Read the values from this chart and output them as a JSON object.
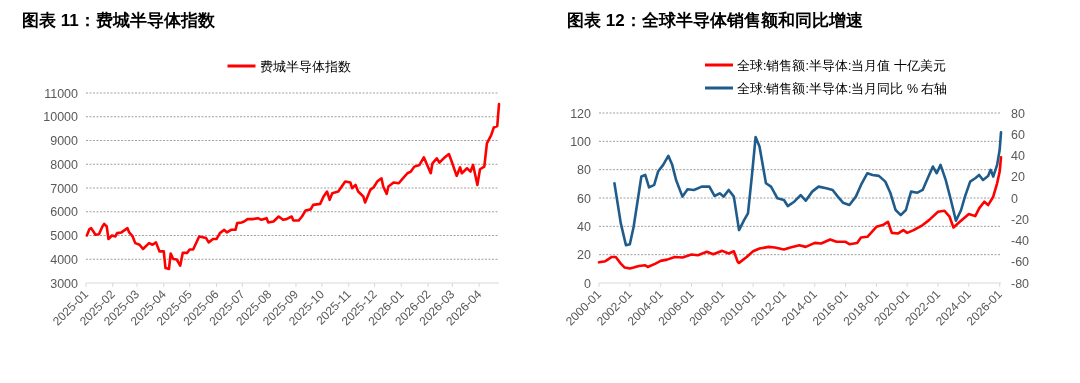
{
  "chart_data": [
    {
      "type": "line",
      "title": "图表 11：费城半导体指数",
      "legend": "top",
      "grid": "y",
      "line_style": "solid",
      "xlim": [
        "2025-01-01",
        "2026-04-24"
      ],
      "xticks": [
        "2025-01",
        "2025-02",
        "2025-03",
        "2025-04",
        "2025-05",
        "2025-06",
        "2025-07",
        "2025-08",
        "2025-09",
        "2025-10",
        "2025-11",
        "2025-12",
        "2026-01",
        "2026-02",
        "2026-03",
        "2026-04"
      ],
      "ylim": [
        3000,
        11000
      ],
      "yticks": [
        3000,
        4000,
        5000,
        6000,
        7000,
        8000,
        9000,
        10000,
        11000
      ],
      "x": [
        "2025-01-02",
        "2025-01-05",
        "2025-01-07",
        "2025-01-12",
        "2025-01-16",
        "2025-01-20",
        "2025-01-22",
        "2025-01-25",
        "2025-01-27",
        "2025-01-31",
        "2025-02-04",
        "2025-02-06",
        "2025-02-11",
        "2025-02-18",
        "2025-02-20",
        "2025-02-24",
        "2025-02-27",
        "2025-03-04",
        "2025-03-08",
        "2025-03-15",
        "2025-03-19",
        "2025-03-23",
        "2025-03-27",
        "2025-04-01",
        "2025-04-03",
        "2025-04-07",
        "2025-04-09",
        "2025-04-12",
        "2025-04-16",
        "2025-04-20",
        "2025-04-23",
        "2025-04-28",
        "2025-05-01",
        "2025-05-05",
        "2025-05-12",
        "2025-05-20",
        "2025-05-23",
        "2025-05-28",
        "2025-06-01",
        "2025-06-05",
        "2025-06-10",
        "2025-06-13",
        "2025-06-18",
        "2025-06-23",
        "2025-06-25",
        "2025-06-30",
        "2025-07-03",
        "2025-07-07",
        "2025-07-13",
        "2025-07-19",
        "2025-07-23",
        "2025-07-29",
        "2025-07-31",
        "2025-08-06",
        "2025-08-12",
        "2025-08-17",
        "2025-08-21",
        "2025-08-27",
        "2025-08-29",
        "2025-09-04",
        "2025-09-08",
        "2025-09-12",
        "2025-09-18",
        "2025-09-21",
        "2025-09-29",
        "2025-10-03",
        "2025-10-07",
        "2025-10-10",
        "2025-10-13",
        "2025-10-20",
        "2025-10-24",
        "2025-10-28",
        "2025-11-03",
        "2025-11-05",
        "2025-11-09",
        "2025-11-12",
        "2025-11-18",
        "2025-11-20",
        "2025-11-26",
        "2025-11-30",
        "2025-12-04",
        "2025-12-09",
        "2025-12-11",
        "2025-12-15",
        "2025-12-17",
        "2025-12-23",
        "2025-12-29",
        "2026-01-02",
        "2026-01-08",
        "2026-01-12",
        "2026-01-16",
        "2026-01-22",
        "2026-01-27",
        "2026-01-30",
        "2026-02-04",
        "2026-02-06",
        "2026-02-11",
        "2026-02-14",
        "2026-02-19",
        "2026-02-25",
        "2026-03-01",
        "2026-03-06",
        "2026-03-10",
        "2026-03-12",
        "2026-03-18",
        "2026-03-22",
        "2026-03-25",
        "2026-03-30",
        "2026-04-02",
        "2026-04-07",
        "2026-04-10",
        "2026-04-15",
        "2026-04-18",
        "2026-04-22",
        "2026-04-24"
      ],
      "series": [
        {
          "name": "费城半导体指数",
          "color": "#ff0000",
          "values": [
            5000,
            5270,
            5310,
            5030,
            5050,
            5380,
            5490,
            5380,
            4850,
            5000,
            4960,
            5100,
            5130,
            5310,
            5130,
            4960,
            4680,
            4610,
            4430,
            4680,
            4610,
            4710,
            4330,
            4330,
            3630,
            3590,
            4240,
            4010,
            3990,
            3730,
            4270,
            4270,
            4410,
            4410,
            4960,
            4890,
            4710,
            4850,
            4850,
            5100,
            5240,
            5130,
            5240,
            5240,
            5520,
            5550,
            5590,
            5690,
            5690,
            5730,
            5660,
            5730,
            5550,
            5590,
            5800,
            5660,
            5690,
            5800,
            5630,
            5630,
            5800,
            6050,
            6100,
            6290,
            6330,
            6640,
            6850,
            6500,
            6780,
            6850,
            7060,
            7270,
            7230,
            6990,
            7130,
            6850,
            6640,
            6390,
            6920,
            7030,
            7270,
            7410,
            7060,
            6750,
            7060,
            7230,
            7200,
            7370,
            7620,
            7690,
            7900,
            7970,
            8290,
            8040,
            7620,
            8040,
            8250,
            8070,
            8250,
            8430,
            8040,
            7510,
            7870,
            7620,
            7830,
            7690,
            7970,
            7130,
            7790,
            7900,
            8880,
            9230,
            9550,
            9610,
            10530
          ]
        }
      ]
    },
    {
      "type": "line",
      "title": "图表 12：全球半导体销售额和同比增速",
      "legend": "top",
      "grid": "y",
      "line_style": "solid",
      "xlim": [
        "2000-01",
        "2026-02"
      ],
      "xticks": [
        "2000-01",
        "2002-01",
        "2004-01",
        "2006-01",
        "2008-01",
        "2010-01",
        "2012-01",
        "2014-01",
        "2016-01",
        "2018-01",
        "2020-01",
        "2022-01",
        "2024-01",
        "2026-01"
      ],
      "ylim": [
        0,
        120
      ],
      "yticks": [
        0,
        20,
        40,
        60,
        80,
        100,
        120
      ],
      "y2lim": [
        -80,
        80
      ],
      "y2ticks": [
        -80,
        -60,
        -40,
        -20,
        0,
        20,
        40,
        60,
        80
      ],
      "series": [
        {
          "name": "全球:销售额:半导体:当月值 十亿美元",
          "color": "#ff0000",
          "x": [
            "2000-01",
            "2000-06",
            "2000-11",
            "2001-02",
            "2001-06",
            "2001-09",
            "2002-01",
            "2002-04",
            "2002-08",
            "2003-01",
            "2003-03",
            "2003-09",
            "2004-01",
            "2004-06",
            "2004-12",
            "2005-06",
            "2006-01",
            "2006-06",
            "2007-01",
            "2007-06",
            "2008-01",
            "2008-06",
            "2008-10",
            "2009-01",
            "2009-02",
            "2009-08",
            "2010-01",
            "2010-06",
            "2011-01",
            "2011-06",
            "2012-01",
            "2012-06",
            "2013-01",
            "2013-06",
            "2014-01",
            "2014-06",
            "2015-01",
            "2015-06",
            "2016-01",
            "2016-04",
            "2016-10",
            "2017-01",
            "2017-06",
            "2018-01",
            "2018-06",
            "2018-10",
            "2019-01",
            "2019-06",
            "2019-10",
            "2020-01",
            "2020-06",
            "2021-01",
            "2021-06",
            "2022-01",
            "2022-06",
            "2022-10",
            "2023-01",
            "2023-06",
            "2024-01",
            "2024-06",
            "2024-09",
            "2025-01",
            "2025-04",
            "2025-08",
            "2025-11",
            "2026-01",
            "2026-02"
          ],
          "values": [
            14.6,
            15.4,
            18.4,
            18.4,
            13.7,
            10.9,
            10.2,
            10.9,
            12,
            12.5,
            11.3,
            13.7,
            15.6,
            16.5,
            18.4,
            18,
            20.1,
            19.6,
            22,
            20.3,
            22.7,
            20.8,
            22.4,
            14.9,
            14.2,
            18.4,
            22.4,
            24.3,
            25.5,
            25,
            23.6,
            25,
            26.7,
            25.5,
            28.3,
            27.9,
            30.7,
            29.1,
            29.1,
            27.4,
            28.3,
            32.1,
            32.6,
            39.7,
            40.9,
            43.2,
            35.4,
            35,
            37.3,
            35.4,
            37.3,
            40.9,
            44.4,
            50.3,
            51,
            46.8,
            39.2,
            43.2,
            48.7,
            47.2,
            52.7,
            57.4,
            55,
            60.9,
            70.4,
            78.7,
            88.8
          ]
        },
        {
          "name": "全球:销售额:半导体:当月同比 % 右轴",
          "color": "#1f5c8c",
          "axis": "y2",
          "x": [
            "2001-01",
            "2001-06",
            "2001-10",
            "2002-01",
            "2002-04",
            "2002-10",
            "2003-01",
            "2003-04",
            "2003-08",
            "2003-11",
            "2004-03",
            "2004-07",
            "2004-10",
            "2005-01",
            "2005-06",
            "2005-10",
            "2006-03",
            "2006-09",
            "2007-03",
            "2007-07",
            "2007-11",
            "2008-02",
            "2008-06",
            "2008-10",
            "2009-02",
            "2009-06",
            "2009-09",
            "2009-12",
            "2010-03",
            "2010-06",
            "2010-11",
            "2011-03",
            "2011-08",
            "2012-01",
            "2012-04",
            "2012-09",
            "2013-02",
            "2013-06",
            "2013-11",
            "2014-04",
            "2014-10",
            "2015-03",
            "2015-07",
            "2015-11",
            "2016-04",
            "2016-09",
            "2017-01",
            "2017-06",
            "2017-10",
            "2018-03",
            "2018-08",
            "2018-12",
            "2019-04",
            "2019-08",
            "2019-12",
            "2020-04",
            "2020-09",
            "2021-01",
            "2021-05",
            "2021-09",
            "2021-12",
            "2022-03",
            "2022-07",
            "2022-11",
            "2023-03",
            "2023-07",
            "2023-10",
            "2024-02",
            "2024-06",
            "2024-09",
            "2024-12",
            "2025-04",
            "2025-06",
            "2025-08",
            "2025-11",
            "2026-01",
            "2026-02"
          ],
          "values": [
            13.9,
            -23.9,
            -44.4,
            -43.5,
            -27,
            20.2,
            21.7,
            10,
            12.3,
            24.9,
            31.2,
            39.7,
            31.2,
            17,
            1.3,
            8.2,
            7.6,
            10.7,
            10.7,
            1.9,
            4.4,
            1.3,
            7.6,
            1.3,
            -30.2,
            -20.8,
            -14.5,
            20.2,
            57.3,
            48.5,
            13.9,
            10.7,
            -0.3,
            -1.9,
            -7.6,
            -3.5,
            2.8,
            -2.5,
            6,
            10.7,
            9.1,
            7.6,
            1.3,
            -4.4,
            -6.6,
            1.3,
            12.3,
            23.3,
            21.7,
            20.8,
            15.4,
            4.4,
            -11.3,
            -16.1,
            -11.3,
            6,
            5,
            7.6,
            18.6,
            29.6,
            23.3,
            31.2,
            17,
            -1.9,
            -21.4,
            -11.3,
            1.3,
            15.4,
            18.6,
            21.7,
            17,
            20.8,
            26.5,
            20.2,
            31.2,
            45.4,
            61.8
          ]
        }
      ]
    }
  ]
}
